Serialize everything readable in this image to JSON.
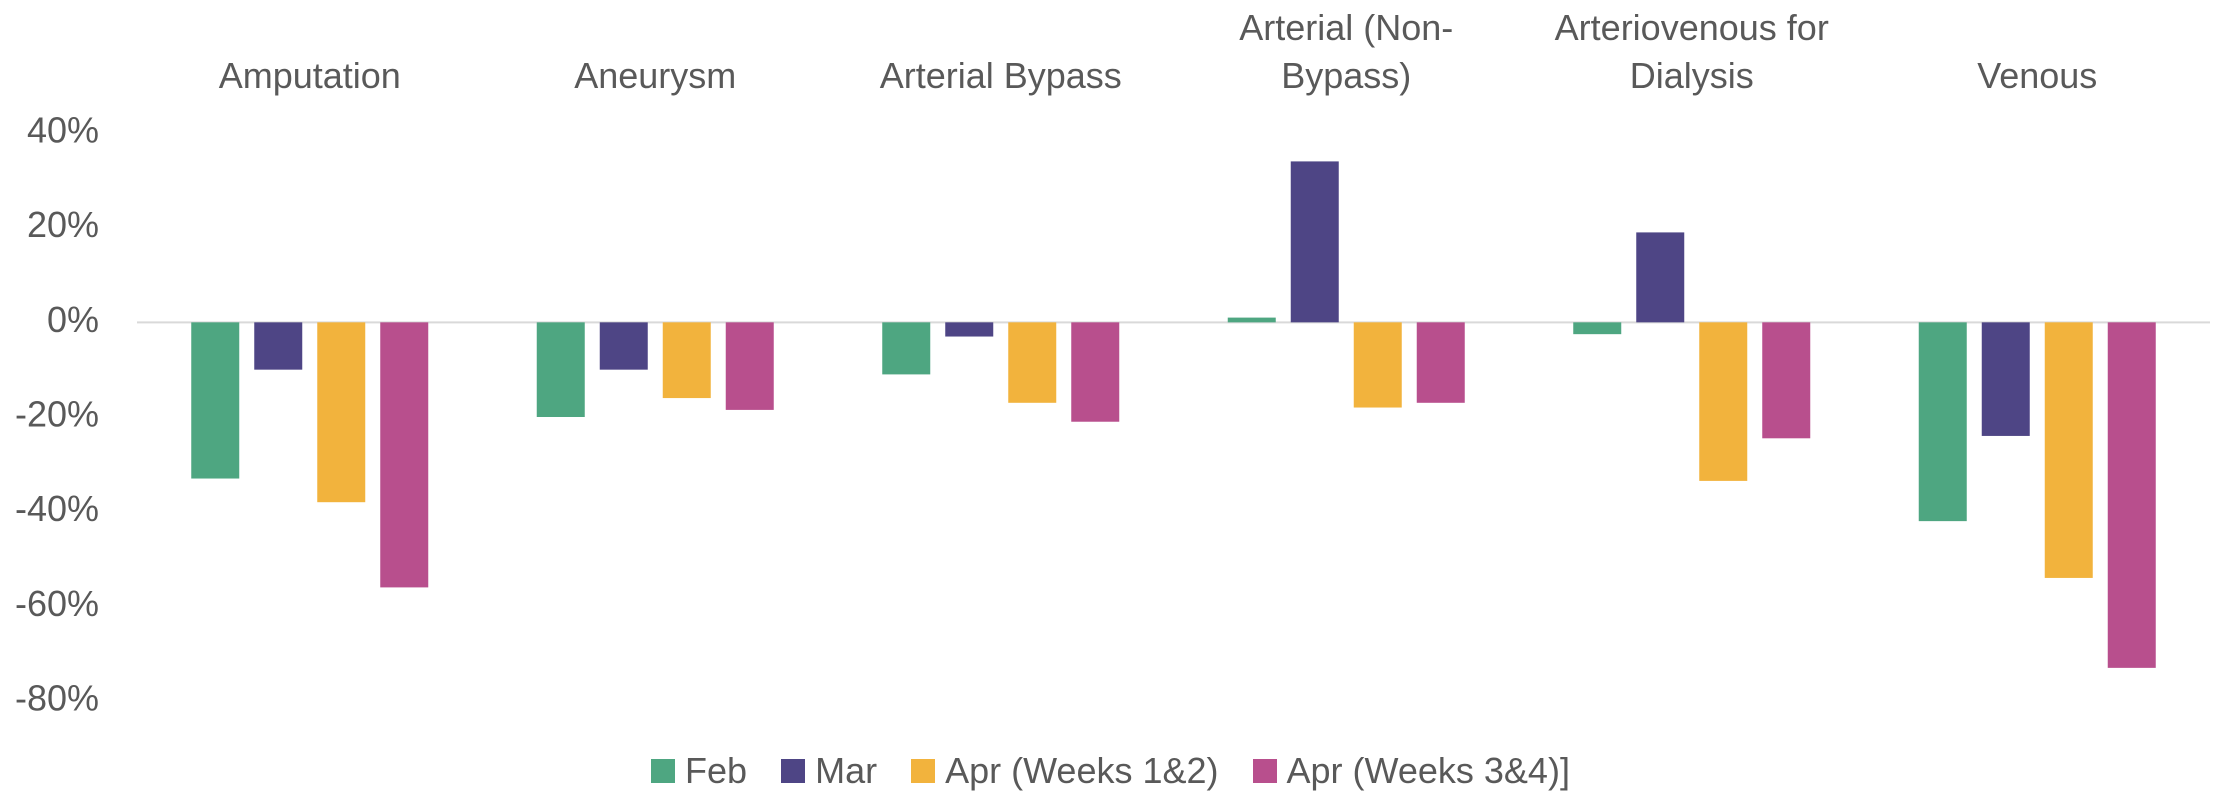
{
  "chart_data": {
    "type": "bar",
    "categories": [
      "Amputation",
      "Aneurysm",
      "Arterial Bypass",
      "Arterial (Non-Bypass)",
      "Arteriovenous for Dialysis",
      "Venous"
    ],
    "series": [
      {
        "name": "Feb",
        "color": "#4ea681",
        "values": [
          -33,
          -20,
          -11,
          1,
          -2.5,
          -42
        ]
      },
      {
        "name": "Mar",
        "color": "#4e4585",
        "values": [
          -10,
          -10,
          -3,
          34,
          19,
          -24
        ]
      },
      {
        "name": "Apr (Weeks 1&2)",
        "color": "#f2b33d",
        "values": [
          -38,
          -16,
          -17,
          -18,
          -33.5,
          -54
        ]
      },
      {
        "name": "Apr (Weeks 3&4)]",
        "color": "#b84f8d",
        "values": [
          -56,
          -18.5,
          -21,
          -17,
          -24.5,
          -73
        ]
      }
    ],
    "ylim": [
      -80,
      40
    ],
    "yticks": [
      {
        "value": -80,
        "label": "-80%"
      },
      {
        "value": -60,
        "label": "-60%"
      },
      {
        "value": -40,
        "label": "-40%"
      },
      {
        "value": -20,
        "label": "-20%"
      },
      {
        "value": 0,
        "label": "0%"
      },
      {
        "value": 20,
        "label": "20%"
      },
      {
        "value": 40,
        "label": "40%"
      }
    ],
    "grid": false,
    "legend": "bottom"
  }
}
